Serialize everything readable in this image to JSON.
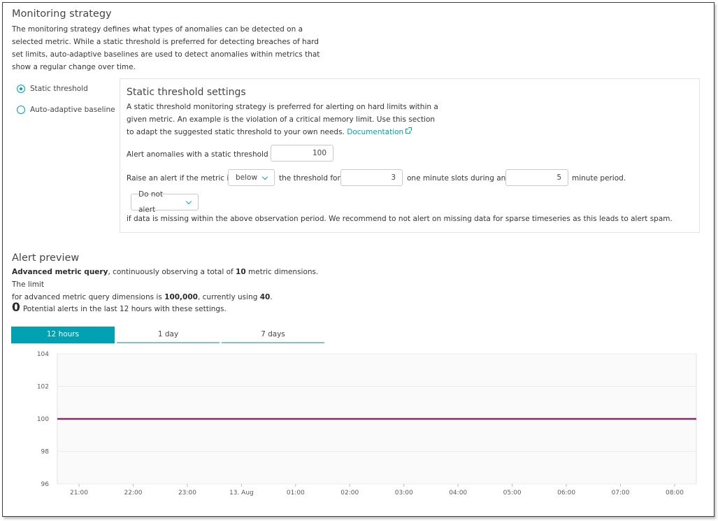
{
  "monitoring": {
    "title": "Monitoring strategy",
    "description": "The monitoring strategy defines what types of anomalies can be detected on a selected metric. While a static threshold is preferred for detecting breaches of hard set limits, auto-adaptive baselines are used to detect anomalies within metrics that show a regular change over time.",
    "options": [
      {
        "label": "Static threshold",
        "selected": true
      },
      {
        "label": "Auto-adaptive baseline",
        "selected": false
      }
    ]
  },
  "settings": {
    "title": "Static threshold settings",
    "description": "A static threshold monitoring strategy is preferred for alerting on hard limits within a given metric. An example is the violation of a critical memory limit. Use this section to adapt the suggested static threshold to your own needs.",
    "doc_link": "Documentation",
    "threshold_label": "Alert anomalies with a static threshold of",
    "threshold_value": "100",
    "raise_label": "Raise an alert if the metric is",
    "direction": "below",
    "threshold_for_label": "the threshold for",
    "slots_value": "3",
    "slots_label": "one minute slots during any",
    "period_value": "5",
    "period_label": "minute period.",
    "missing_option": "Do not alert",
    "missing_text": "if data is missing within the above observation period. We recommend to not alert on missing data for sparse timeseries as this leads to alert spam."
  },
  "preview": {
    "title": "Alert preview",
    "query_label": "Advanced metric query",
    "line1_mid": ", continuously observing a total of ",
    "dimensions": "10",
    "line1_end": " metric dimensions. The limit",
    "line2_start": "for advanced metric query dimensions is ",
    "limit": "100,000",
    "line2_mid": ", currently using ",
    "using": "40",
    "line2_end": ".",
    "alerts_count": "0",
    "alerts_text": "Potential alerts in the last 12 hours with these settings.",
    "tabs": [
      {
        "label": "12 hours",
        "active": true
      },
      {
        "label": "1 day",
        "active": false
      },
      {
        "label": "7 days",
        "active": false
      }
    ]
  },
  "colors": {
    "accent": "#00a1b2",
    "threshold_line": "#c62828",
    "series_line": "#6a2c8c"
  },
  "chart_data": {
    "type": "line",
    "title": "",
    "xlabel": "",
    "ylabel": "",
    "ylim": [
      96,
      104
    ],
    "yticks": [
      96,
      98,
      100,
      102,
      104
    ],
    "xticks": [
      "21:00",
      "22:00",
      "23:00",
      "13. Aug",
      "01:00",
      "02:00",
      "03:00",
      "04:00",
      "05:00",
      "06:00",
      "07:00",
      "08:00"
    ],
    "grid": true,
    "series": [
      {
        "x": [
          0,
          11.5
        ],
        "y": [
          100,
          100
        ],
        "color": "#6a2c8c"
      }
    ],
    "threshold": 100
  }
}
